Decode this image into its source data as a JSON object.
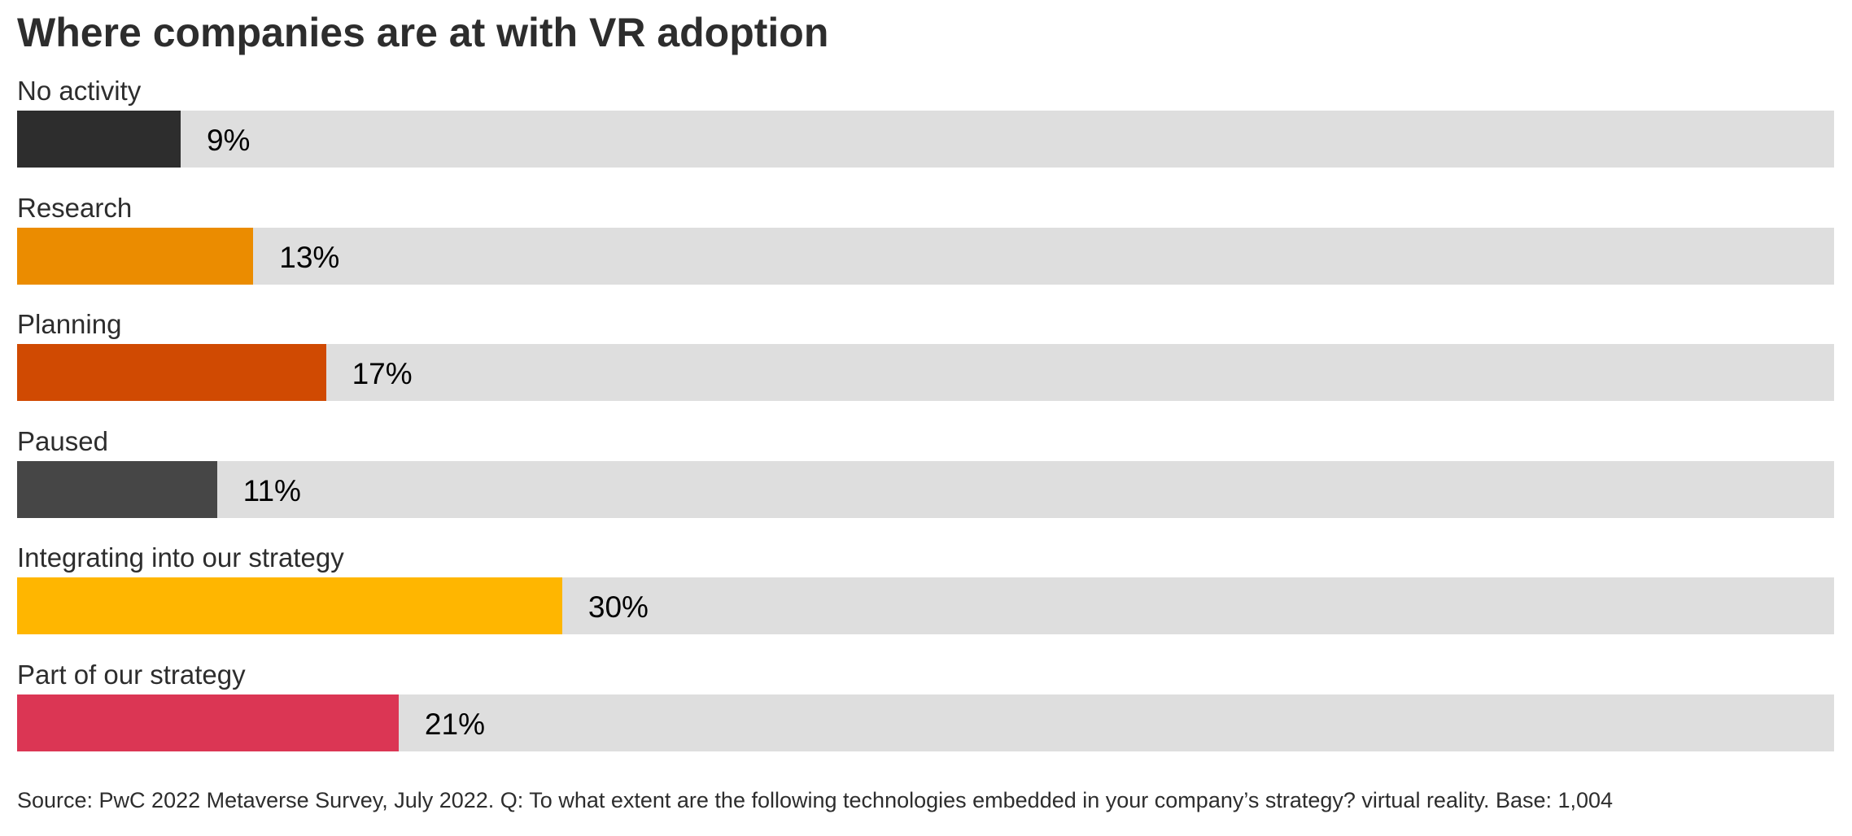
{
  "chart_data": {
    "type": "bar",
    "orientation": "horizontal",
    "title": "Where companies are at with VR adoption",
    "categories": [
      "No activity",
      "Research",
      "Planning",
      "Paused",
      "Integrating into our strategy",
      "Part of our strategy"
    ],
    "values": [
      9,
      13,
      17,
      11,
      30,
      21
    ],
    "value_labels": [
      "9%",
      "13%",
      "17%",
      "11%",
      "30%",
      "21%"
    ],
    "colors": [
      "#2d2d2d",
      "#eb8c00",
      "#d04a02",
      "#464646",
      "#ffb600",
      "#db3654"
    ],
    "track_color": "#dedede",
    "xlim": [
      0,
      100
    ],
    "grid": false,
    "legend": "none"
  },
  "source": "Source: PwC 2022 Metaverse Survey, July 2022. Q: To what extent are the following technologies embedded in your company’s strategy? virtual reality. Base: 1,004"
}
